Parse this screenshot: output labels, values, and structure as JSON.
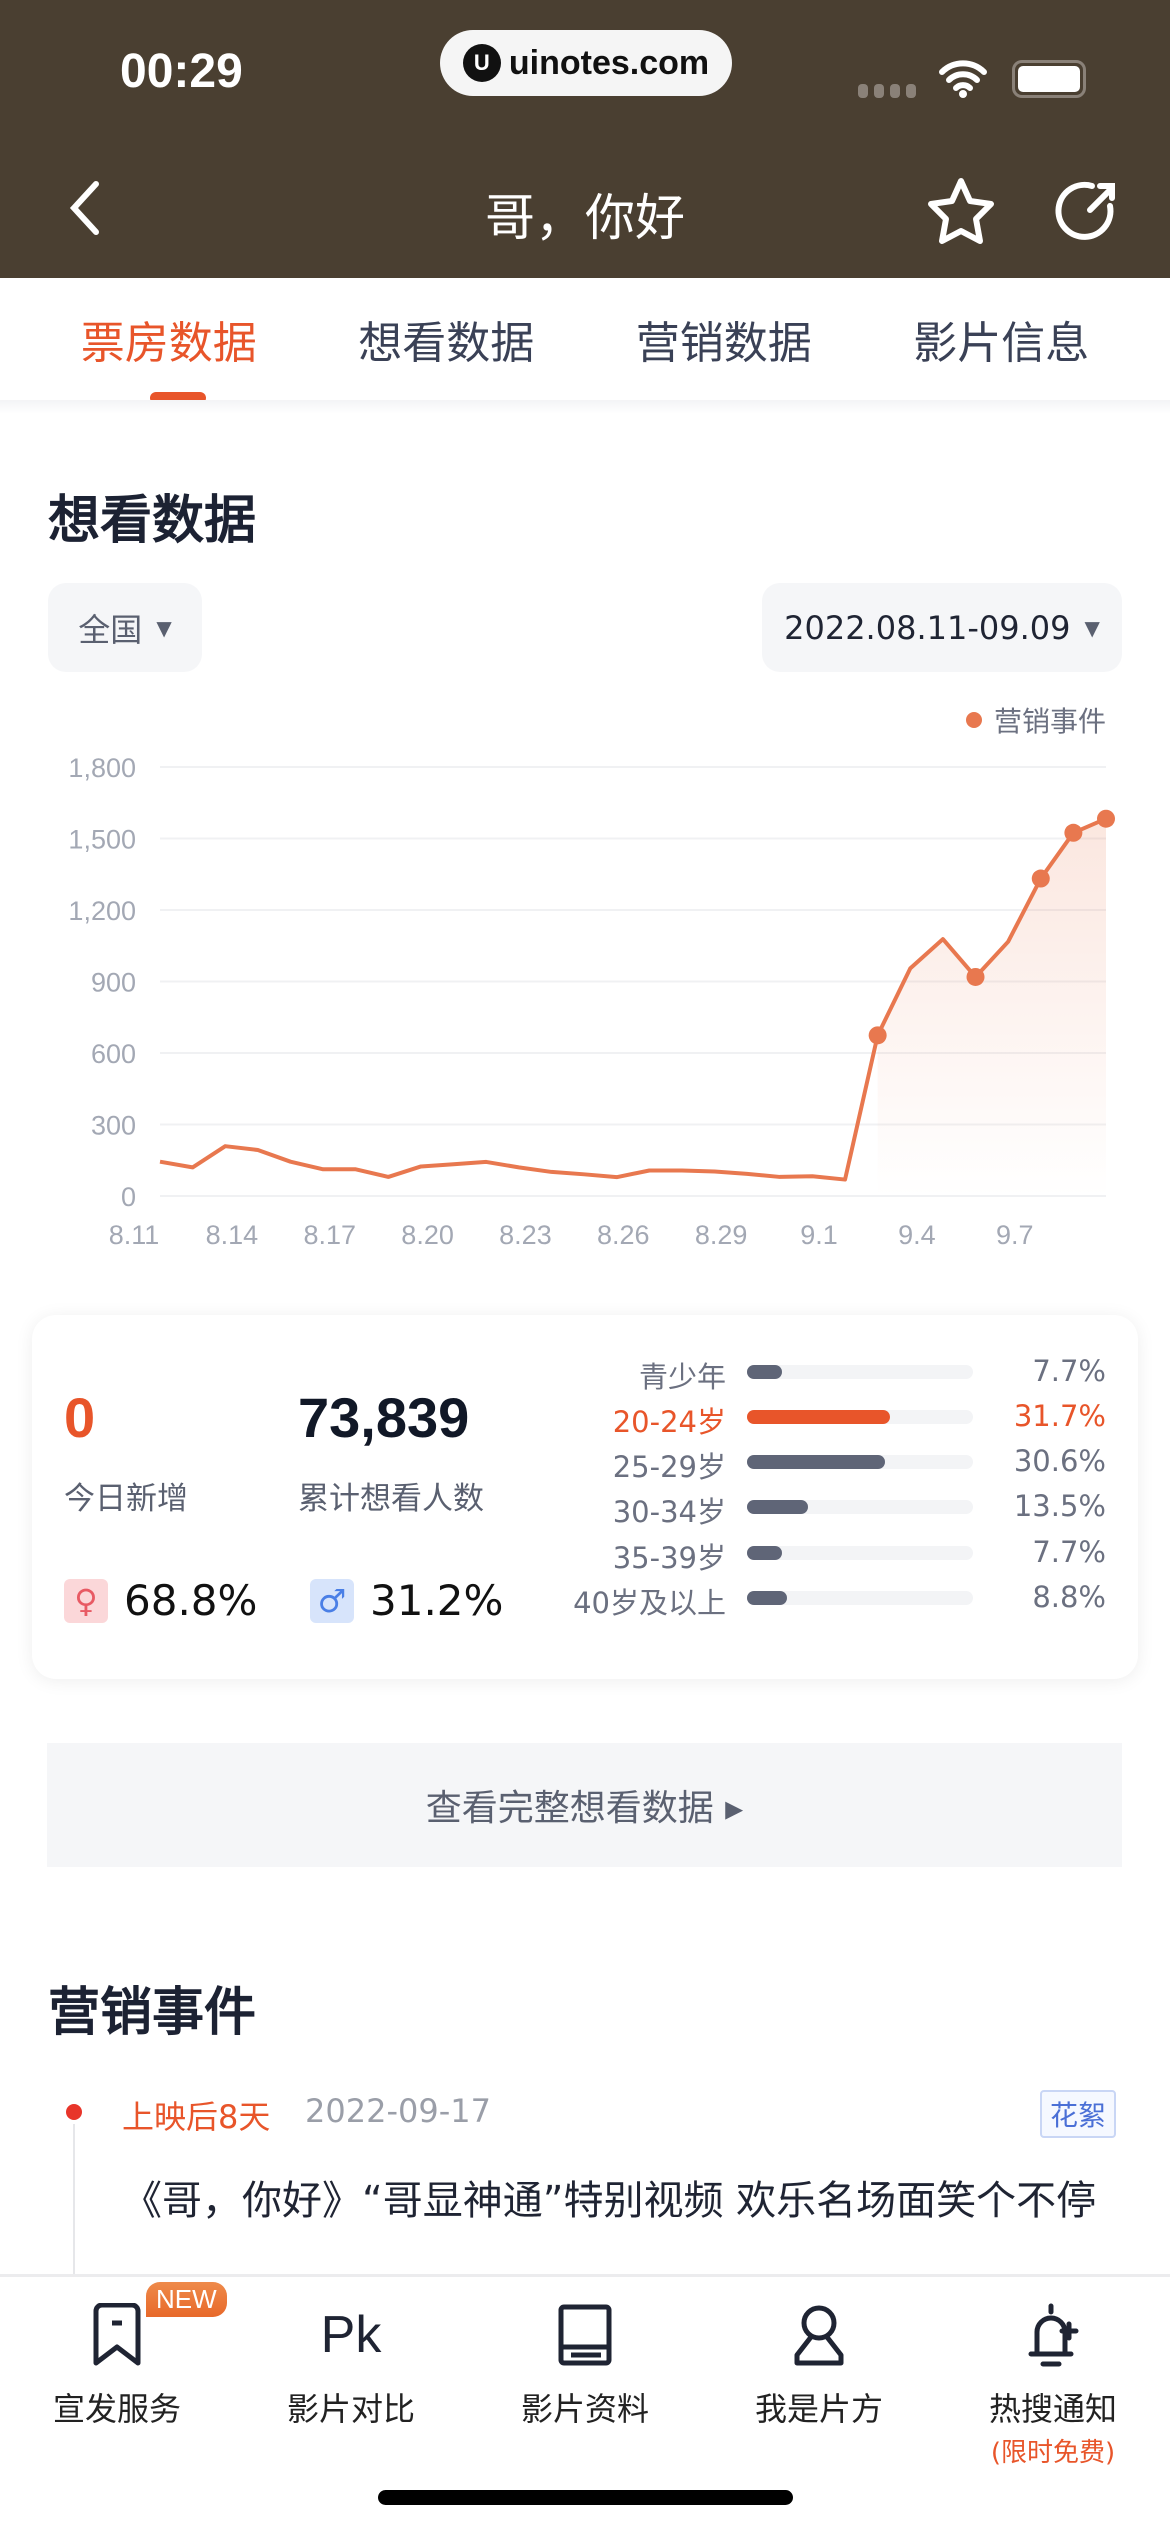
{
  "status_bar": {
    "time": "00:29",
    "url": "uinotes.com"
  },
  "header": {
    "title": "哥，你好",
    "icons": [
      "back-icon",
      "star-icon",
      "share-icon"
    ]
  },
  "tabs": [
    {
      "label": "票房数据",
      "active": true
    },
    {
      "label": "想看数据"
    },
    {
      "label": "营销数据"
    },
    {
      "label": "影片信息"
    }
  ],
  "section": {
    "title": "想看数据",
    "region": "全国",
    "date_range": "2022.08.11-09.09"
  },
  "chart_data": {
    "type": "line",
    "legend": "营销事件",
    "legend_placement": "top-right",
    "grid": true,
    "ylim": [
      0,
      1800
    ],
    "yticks": [
      "0",
      "300",
      "600",
      "900",
      "1,200",
      "1,500",
      "1,800"
    ],
    "xticks": [
      "8.11",
      "8.14",
      "8.17",
      "8.20",
      "8.23",
      "8.26",
      "8.29",
      "9.1",
      "9.4",
      "9.7"
    ],
    "x": [
      "8.11",
      "8.12",
      "8.13",
      "8.14",
      "8.15",
      "8.16",
      "8.17",
      "8.18",
      "8.19",
      "8.20",
      "8.21",
      "8.22",
      "8.23",
      "8.24",
      "8.25",
      "8.26",
      "8.27",
      "8.28",
      "8.29",
      "8.30",
      "8.31",
      "9.1",
      "9.2",
      "9.3",
      "9.4",
      "9.5",
      "9.6",
      "9.7",
      "9.8",
      "9.9"
    ],
    "values": [
      144,
      120,
      209,
      193,
      144,
      112,
      112,
      80,
      124,
      133,
      143,
      120,
      101,
      91,
      79,
      107,
      107,
      103,
      93,
      80,
      83,
      69,
      674,
      955,
      1078,
      919,
      1067,
      1332,
      1524,
      1583
    ],
    "event_markers": [
      "9.2",
      "9.5",
      "9.7",
      "9.8",
      "9.9"
    ],
    "color": "#e8784f"
  },
  "stats": {
    "today_new": "0",
    "today_new_label": "今日新增",
    "total": "73,839",
    "total_label": "累计想看人数",
    "female": "68.8%",
    "male": "31.2%",
    "ages": [
      {
        "label": "青少年",
        "pct": "7.7%",
        "value": 7.7
      },
      {
        "label": "20-24岁",
        "pct": "31.7%",
        "value": 31.7,
        "highlight": true
      },
      {
        "label": "25-29岁",
        "pct": "30.6%",
        "value": 30.6
      },
      {
        "label": "30-34岁",
        "pct": "13.5%",
        "value": 13.5
      },
      {
        "label": "35-39岁",
        "pct": "7.7%",
        "value": 7.7
      },
      {
        "label": "40岁及以上",
        "pct": "8.8%",
        "value": 8.8
      }
    ]
  },
  "full_data_button": "查看完整想看数据 ▸",
  "events": {
    "title": "营销事件",
    "items": [
      {
        "day": "上映后8天",
        "date": "2022-09-17",
        "tag": "花絮",
        "text": "《哥，你好》“哥显神通”特别视频 欢乐名场面笑个不停"
      }
    ]
  },
  "bottom_nav": [
    {
      "label": "宣发服务",
      "badge": "NEW"
    },
    {
      "label": "影片对比"
    },
    {
      "label": "影片资料"
    },
    {
      "label": "我是片方"
    },
    {
      "label": "热搜通知",
      "sub": "(限时免费)"
    }
  ],
  "colors": {
    "header_bg": "#4a3f31",
    "accent": "#e8552a",
    "line": "#e8784f"
  }
}
